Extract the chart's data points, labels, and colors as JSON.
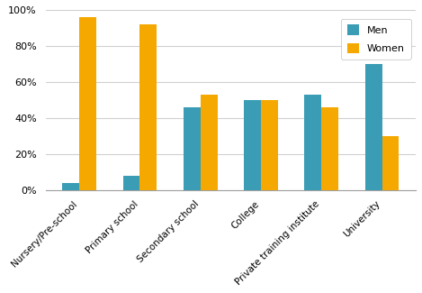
{
  "categories": [
    "Nursery/Pre-school",
    "Primary school",
    "Secondary school",
    "College",
    "Private training institute",
    "University"
  ],
  "men": [
    4,
    8,
    46,
    50,
    53,
    70
  ],
  "women": [
    96,
    92,
    53,
    50,
    46,
    30
  ],
  "men_color": "#3B9DB5",
  "women_color": "#F5A800",
  "legend_labels": [
    "Men",
    "Women"
  ],
  "ylim": [
    0,
    100
  ],
  "yticks": [
    0,
    20,
    40,
    60,
    80,
    100
  ],
  "ytick_labels": [
    "0%",
    "20%",
    "40%",
    "60%",
    "80%",
    "100%"
  ],
  "bar_width": 0.28,
  "figsize": [
    4.69,
    3.25
  ],
  "dpi": 100
}
